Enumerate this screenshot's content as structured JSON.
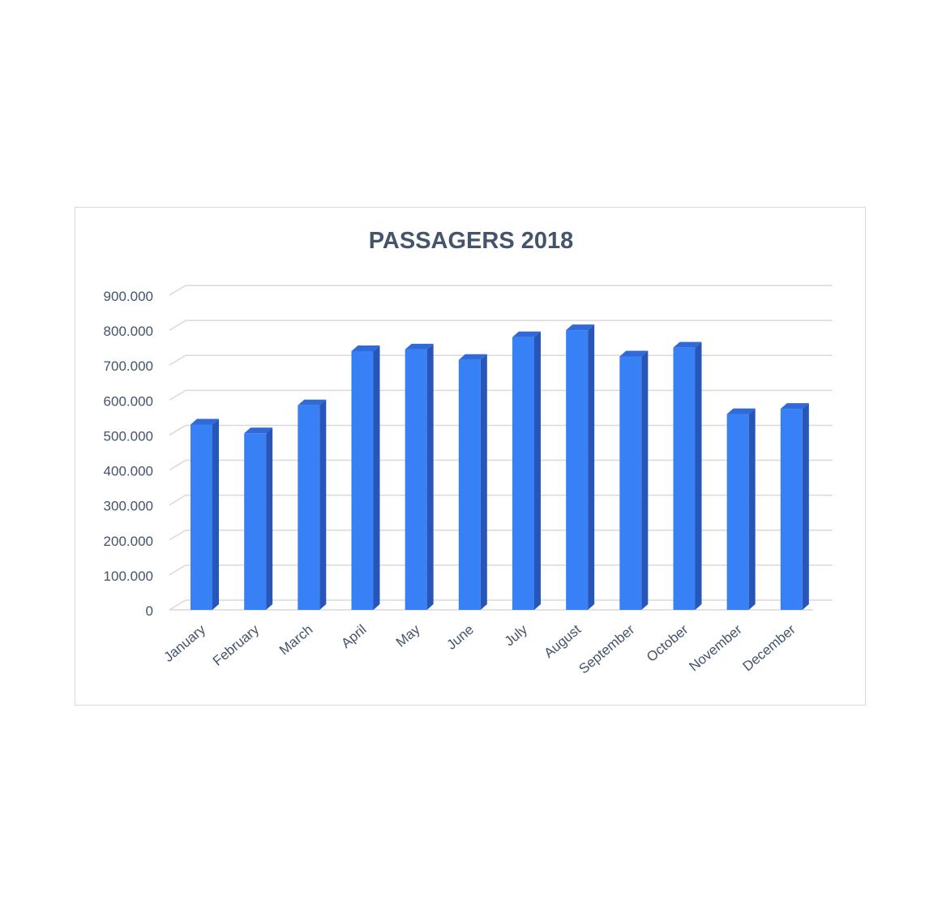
{
  "chart_data": {
    "type": "bar",
    "title": "PASSAGERS 2018",
    "categories": [
      "January",
      "February",
      "March",
      "April",
      "May",
      "June",
      "July",
      "August",
      "September",
      "October",
      "November",
      "December"
    ],
    "values": [
      530000,
      505000,
      585000,
      740000,
      745000,
      715000,
      780000,
      800000,
      725000,
      750000,
      560000,
      575000
    ],
    "ylim": [
      0,
      900000
    ],
    "yticks": [
      "0",
      "100.000",
      "200.000",
      "300.000",
      "400.000",
      "500.000",
      "600.000",
      "700.000",
      "800.000",
      "900.000"
    ],
    "grid": true,
    "legend": "none",
    "colors": {
      "bar_front": "#3880f5",
      "bar_side": "#2756b8",
      "bar_top": "#2f6ad8",
      "title": "#44546a",
      "label": "#44546a",
      "grid": "#d9d9d9"
    }
  }
}
